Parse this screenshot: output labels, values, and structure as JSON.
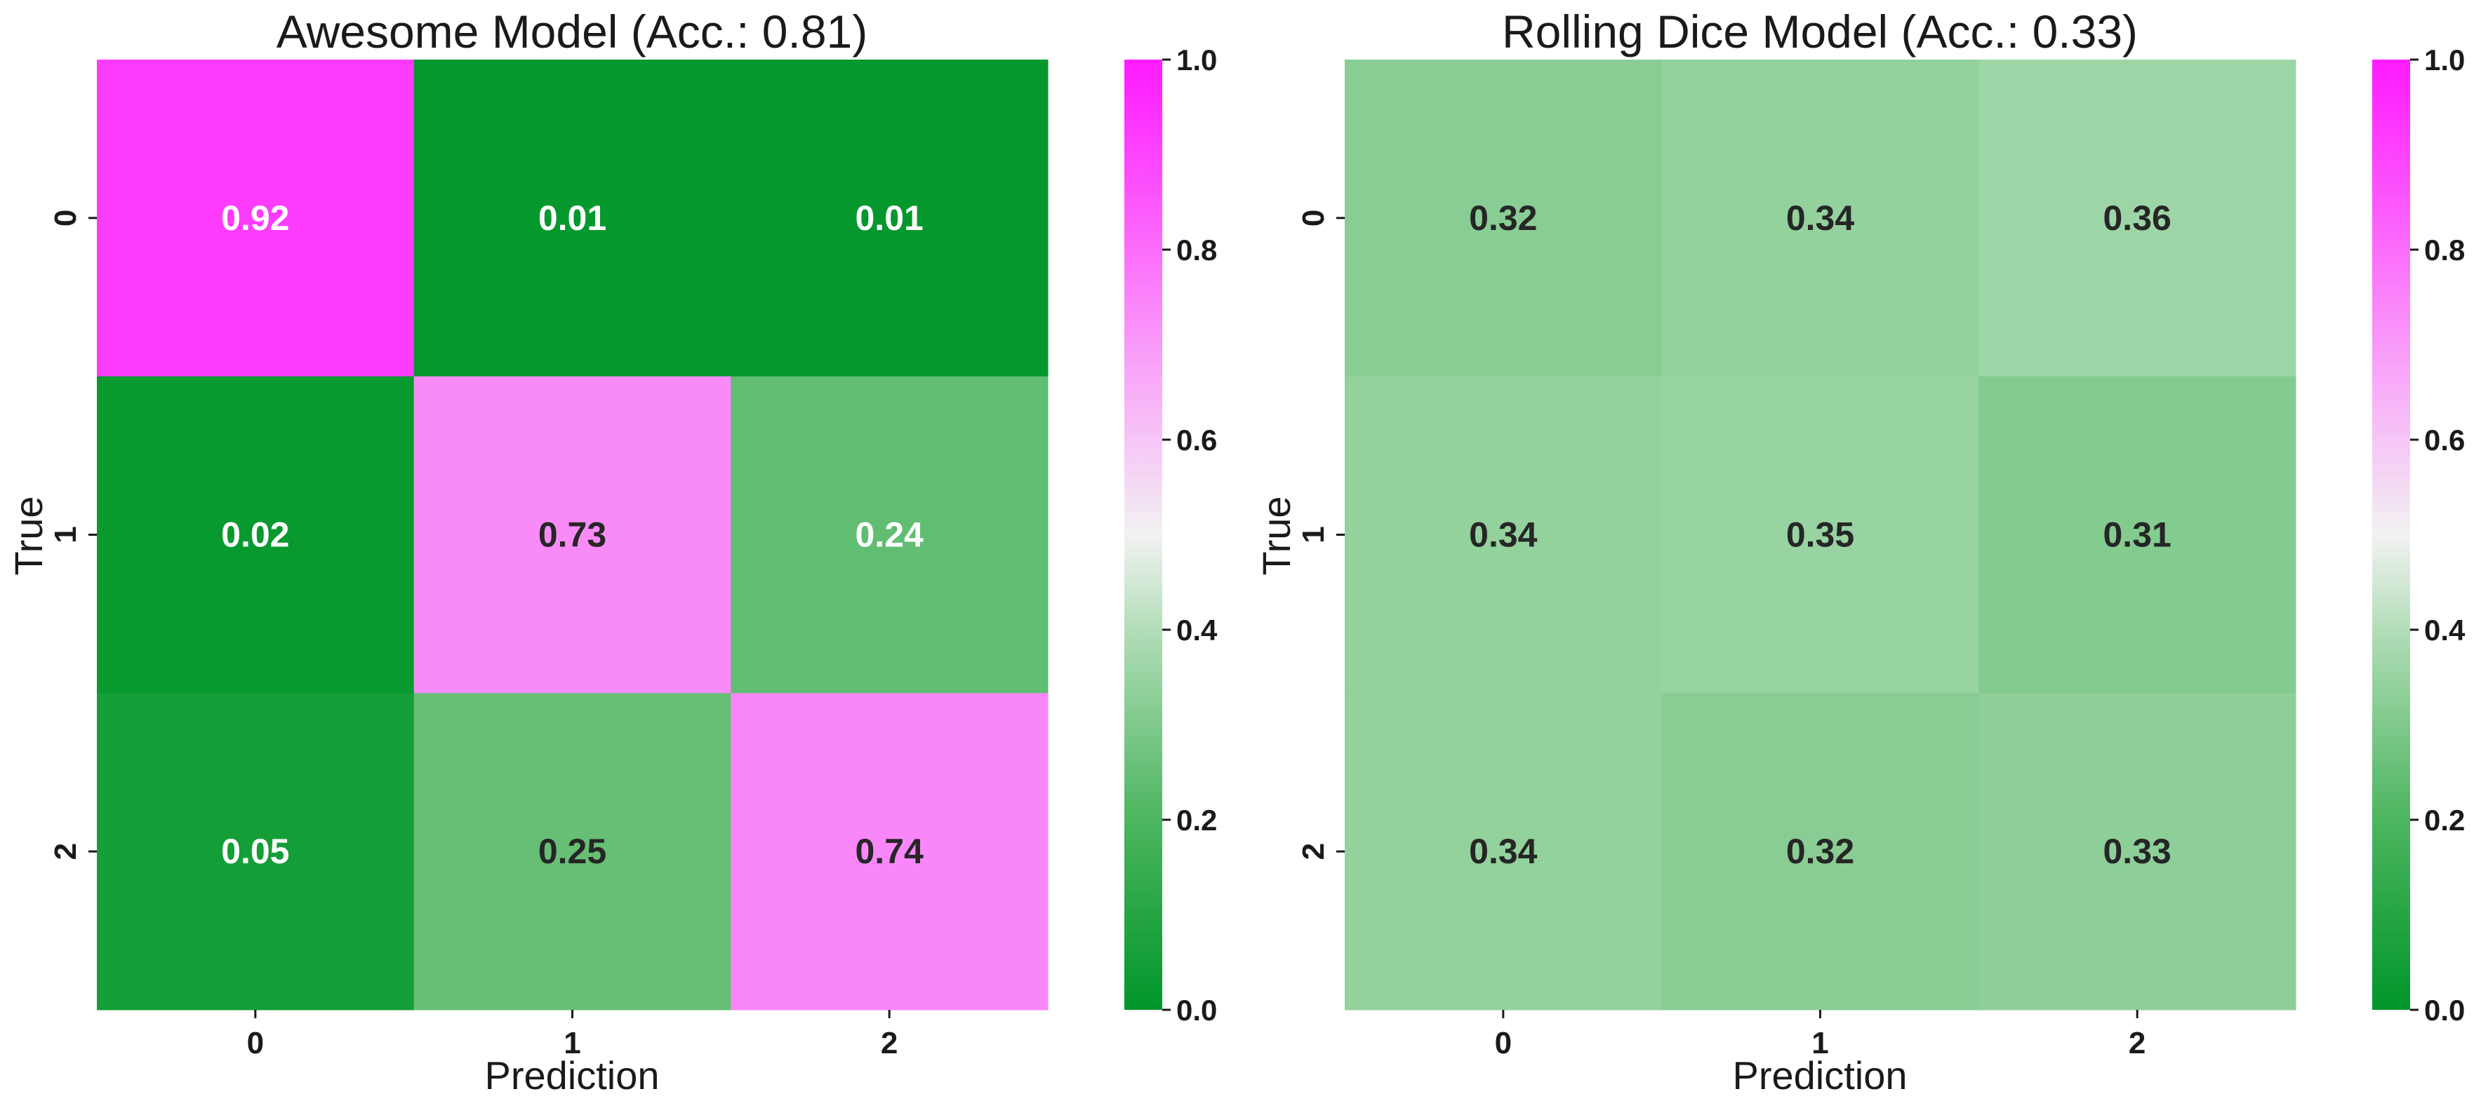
{
  "chart_data": [
    {
      "type": "heatmap",
      "title": "Awesome Model (Acc.: 0.81)",
      "xlabel": "Prediction",
      "ylabel": "True",
      "x_categories": [
        "0",
        "1",
        "2"
      ],
      "y_categories": [
        "0",
        "1",
        "2"
      ],
      "values": [
        [
          0.92,
          0.01,
          0.01
        ],
        [
          0.02,
          0.73,
          0.24
        ],
        [
          0.05,
          0.25,
          0.74
        ]
      ],
      "value_labels": [
        [
          "0.92",
          "0.01",
          "0.01"
        ],
        [
          "0.02",
          "0.73",
          "0.24"
        ],
        [
          "0.05",
          "0.25",
          "0.74"
        ]
      ],
      "colorbar": {
        "range": [
          0.0,
          1.0
        ],
        "ticks": [
          "0.0",
          "0.2",
          "0.4",
          "0.6",
          "0.8",
          "1.0"
        ],
        "colormap": "green-white-magenta"
      }
    },
    {
      "type": "heatmap",
      "title": "Rolling Dice Model (Acc.: 0.33)",
      "xlabel": "Prediction",
      "ylabel": "True",
      "x_categories": [
        "0",
        "1",
        "2"
      ],
      "y_categories": [
        "0",
        "1",
        "2"
      ],
      "values": [
        [
          0.32,
          0.34,
          0.36
        ],
        [
          0.34,
          0.35,
          0.31
        ],
        [
          0.34,
          0.32,
          0.33
        ]
      ],
      "value_labels": [
        [
          "0.32",
          "0.34",
          "0.36"
        ],
        [
          "0.34",
          "0.35",
          "0.31"
        ],
        [
          "0.34",
          "0.32",
          "0.33"
        ]
      ],
      "colorbar": {
        "range": [
          0.0,
          1.0
        ],
        "ticks": [
          "0.0",
          "0.2",
          "0.4",
          "0.6",
          "0.8",
          "1.0"
        ],
        "colormap": "green-white-magenta"
      }
    }
  ],
  "colors": {
    "low": "#00962a",
    "mid": "#f2f2f2",
    "high": "#ff1aff",
    "text_dark": "#262626",
    "text_light": "#ffffff"
  }
}
